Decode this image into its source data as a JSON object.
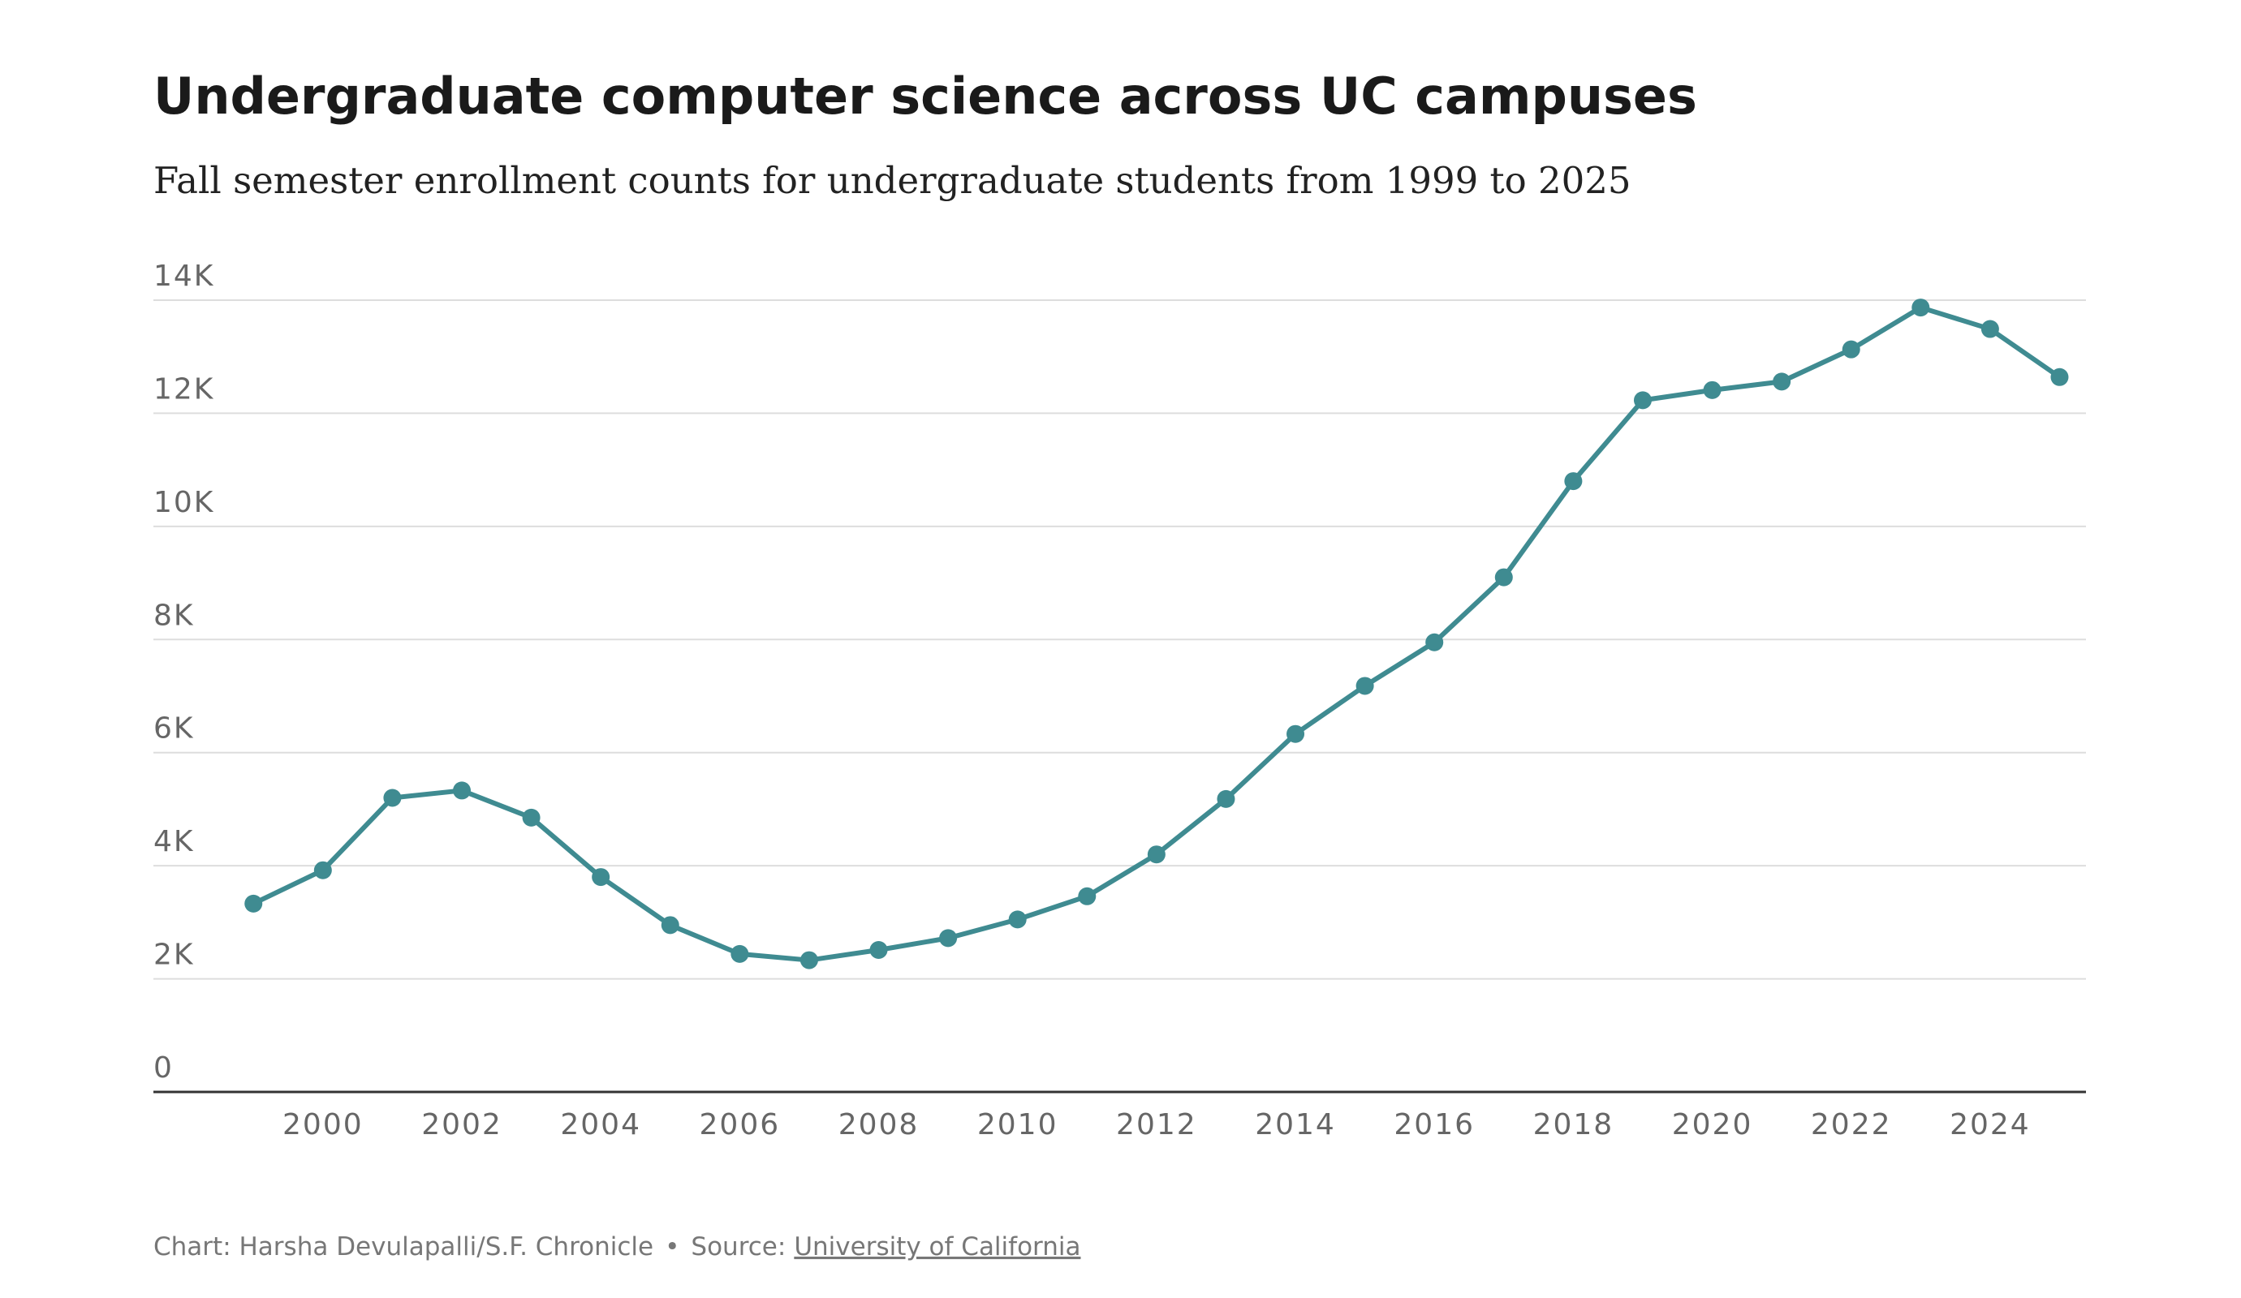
{
  "chart_data": {
    "type": "line",
    "title": "Undergraduate computer science across UC campuses",
    "subtitle": "Fall semester enrollment counts for undergraduate students from 1999 to 2025",
    "x": [
      1999,
      2000,
      2001,
      2002,
      2003,
      2004,
      2005,
      2006,
      2007,
      2008,
      2009,
      2010,
      2011,
      2012,
      2013,
      2014,
      2015,
      2016,
      2017,
      2018,
      2019,
      2020,
      2021,
      2022,
      2023,
      2024,
      2025
    ],
    "values": [
      3330,
      3920,
      5200,
      5330,
      4850,
      3800,
      2950,
      2440,
      2330,
      2510,
      2720,
      3050,
      3460,
      4200,
      5180,
      6330,
      7180,
      7950,
      9100,
      10800,
      12230,
      12410,
      12560,
      13130,
      13870,
      13490,
      12640
    ],
    "color": "#3f8b91",
    "xlim": [
      1997.56,
      2025.38
    ],
    "xticks": [
      2000,
      2002,
      2004,
      2006,
      2008,
      2010,
      2012,
      2014,
      2016,
      2018,
      2020,
      2022,
      2024
    ],
    "ylim": [
      0,
      14000
    ],
    "yticks": [
      0,
      {
        "value": 2000,
        "label": "2K"
      },
      {
        "value": 4000,
        "label": "4K"
      },
      {
        "value": 6000,
        "label": "6K"
      },
      {
        "value": 8000,
        "label": "8K"
      },
      {
        "value": 10000,
        "label": "10K"
      },
      {
        "value": 12000,
        "label": "12K"
      },
      {
        "value": 14000,
        "label": "14K"
      }
    ],
    "grid": true,
    "credit": "Chart: Harsha Devulapalli/S.F. Chronicle",
    "separator": "•",
    "source_label": "Source:",
    "source": "University of California"
  }
}
